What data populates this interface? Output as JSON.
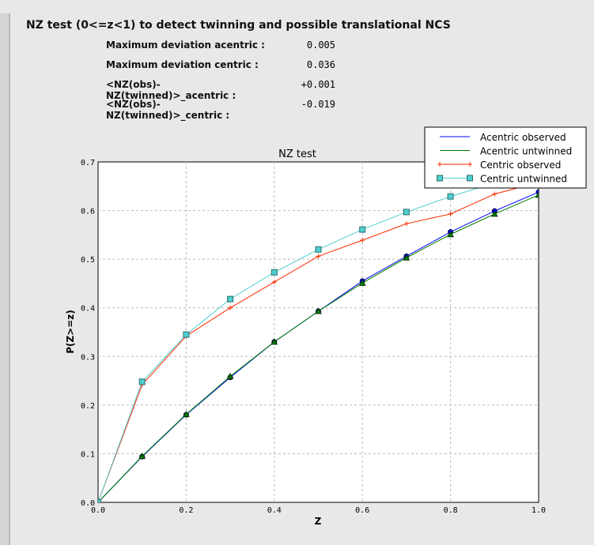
{
  "header": {
    "title": "NZ test (0<=z<1) to detect twinning and possible translational NCS"
  },
  "stats": [
    {
      "label": "Maximum deviation acentric :",
      "value": "0.005"
    },
    {
      "label": "Maximum deviation centric :",
      "value": "0.036"
    },
    {
      "label": "<NZ(obs)-NZ(twinned)>_acentric :",
      "value": "+0.001"
    },
    {
      "label": "<NZ(obs)-NZ(twinned)>_centric :",
      "value": "-0.019"
    }
  ],
  "chart_data": {
    "type": "line",
    "title": "NZ test",
    "xlabel": "Z",
    "ylabel": "P(Z>=z)",
    "xlim": [
      0,
      1
    ],
    "ylim": [
      0,
      0.7
    ],
    "grid": true,
    "legend": "top-right",
    "xticks": [
      "0.0",
      "0.2",
      "0.4",
      "0.6",
      "0.8",
      "1.0"
    ],
    "yticks": [
      "0.0",
      "0.1",
      "0.2",
      "0.3",
      "0.4",
      "0.5",
      "0.6",
      "0.7"
    ],
    "x": [
      0,
      0.1,
      0.2,
      0.3,
      0.4,
      0.5,
      0.6,
      0.7,
      0.8,
      0.9,
      1.0
    ],
    "series": [
      {
        "name": "Acentric observed",
        "color": "#0000ff",
        "marker": "circle",
        "values": [
          0,
          0.094,
          0.18,
          0.257,
          0.33,
          0.393,
          0.455,
          0.506,
          0.556,
          0.599,
          0.638
        ]
      },
      {
        "name": "Acentric untwinned",
        "color": "#008000",
        "marker": "triangle",
        "values": [
          0,
          0.095,
          0.181,
          0.259,
          0.33,
          0.393,
          0.451,
          0.503,
          0.551,
          0.593,
          0.632
        ]
      },
      {
        "name": "Centric observed",
        "color": "#ff2a00",
        "marker": "plus",
        "values": [
          0,
          0.242,
          0.342,
          0.4,
          0.453,
          0.506,
          0.539,
          0.573,
          0.593,
          0.634,
          0.658
        ]
      },
      {
        "name": "Centric untwinned",
        "color": "#4fcfcf",
        "marker": "square",
        "values": [
          0,
          0.248,
          0.345,
          0.418,
          0.473,
          0.52,
          0.561,
          0.597,
          0.629,
          0.657,
          0.683
        ]
      }
    ]
  }
}
